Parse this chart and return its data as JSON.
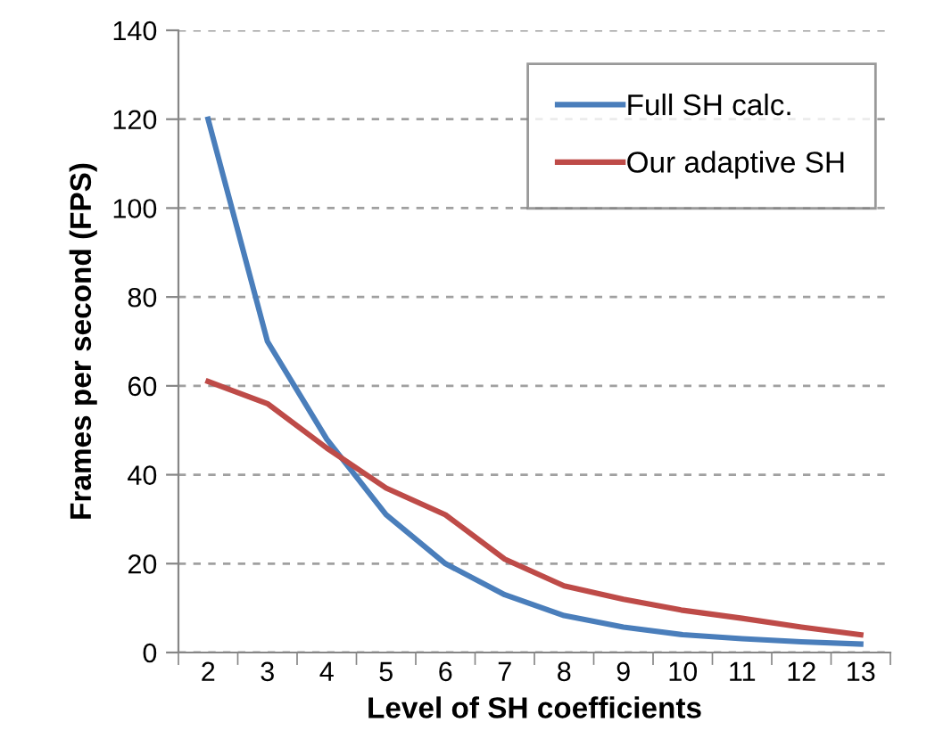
{
  "chart_data": {
    "type": "line",
    "xlabel": "Level of SH coefficients",
    "ylabel": "Frames per second (FPS)",
    "categories": [
      "2",
      "3",
      "4",
      "5",
      "6",
      "7",
      "8",
      "9",
      "10",
      "11",
      "12",
      "13"
    ],
    "series": [
      {
        "name": "Full SH calc.",
        "color": "#4a7ebb",
        "values": [
          120,
          70,
          48,
          31,
          20,
          13,
          8.3,
          5.7,
          4,
          3.1,
          2.4,
          1.9
        ]
      },
      {
        "name": "Our adaptive SH",
        "color": "#be4b48",
        "values": [
          61,
          56,
          46,
          37,
          31,
          21,
          15,
          12,
          9.5,
          7.7,
          5.7,
          4
        ]
      }
    ],
    "ylim": [
      0,
      140
    ],
    "yticks": [
      0,
      20,
      40,
      60,
      80,
      100,
      120,
      140
    ],
    "grid": "y",
    "legend": "top right",
    "line_style": "solid",
    "marker": "none"
  }
}
